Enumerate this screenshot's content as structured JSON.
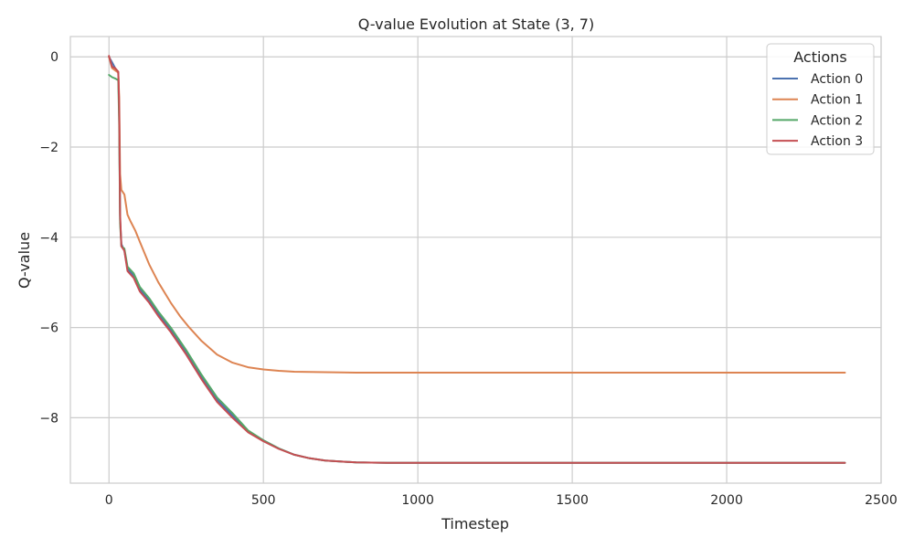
{
  "chart_data": {
    "type": "line",
    "title": "Q-value Evolution at State (3, 7)",
    "xlabel": "Timestep",
    "ylabel": "Q-value",
    "xlim": [
      -125,
      2500
    ],
    "ylim": [
      -9.45,
      0.45
    ],
    "xticks": [
      0,
      500,
      1000,
      1500,
      2000,
      2500
    ],
    "yticks": [
      0,
      -2,
      -4,
      -6,
      -8
    ],
    "grid": true,
    "legend": {
      "title": "Actions",
      "placement": "top-right"
    },
    "series": [
      {
        "name": "Action 0",
        "color": "#4c72b0",
        "x": [
          0,
          10,
          20,
          30,
          33,
          36,
          40,
          50,
          60,
          80,
          100,
          130,
          160,
          200,
          250,
          300,
          350,
          400,
          450,
          500,
          550,
          600,
          650,
          700,
          800,
          900,
          1000,
          1500,
          2000,
          2383
        ],
        "y": [
          0,
          -0.12,
          -0.25,
          -0.35,
          -1.2,
          -3.6,
          -4.15,
          -4.3,
          -4.7,
          -4.85,
          -5.15,
          -5.4,
          -5.7,
          -6.05,
          -6.55,
          -7.1,
          -7.6,
          -7.95,
          -8.3,
          -8.5,
          -8.68,
          -8.82,
          -8.9,
          -8.95,
          -8.99,
          -9.0,
          -9.0,
          -9.0,
          -9.0,
          -9.0
        ]
      },
      {
        "name": "Action 1",
        "color": "#dd8452",
        "x": [
          0,
          10,
          20,
          30,
          33,
          36,
          40,
          50,
          60,
          70,
          85,
          100,
          130,
          160,
          200,
          230,
          260,
          300,
          350,
          400,
          450,
          500,
          550,
          600,
          700,
          800,
          1000,
          1500,
          2000,
          2383
        ],
        "y": [
          0,
          -0.25,
          -0.3,
          -0.35,
          -0.9,
          -2.6,
          -2.95,
          -3.05,
          -3.5,
          -3.65,
          -3.85,
          -4.1,
          -4.6,
          -5.0,
          -5.45,
          -5.75,
          -6.0,
          -6.3,
          -6.6,
          -6.78,
          -6.88,
          -6.93,
          -6.96,
          -6.98,
          -6.99,
          -7.0,
          -7.0,
          -7.0,
          -7.0,
          -7.0
        ]
      },
      {
        "name": "Action 2",
        "color": "#55a868",
        "x": [
          0,
          10,
          20,
          30,
          33,
          36,
          40,
          50,
          60,
          80,
          100,
          130,
          160,
          200,
          250,
          300,
          350,
          400,
          450,
          500,
          550,
          600,
          650,
          700,
          800,
          900,
          1000,
          1500,
          2000,
          2383
        ],
        "y": [
          -0.4,
          -0.45,
          -0.48,
          -0.52,
          -1.5,
          -3.7,
          -4.2,
          -4.25,
          -4.65,
          -4.8,
          -5.1,
          -5.35,
          -5.65,
          -6.0,
          -6.5,
          -7.05,
          -7.55,
          -7.9,
          -8.28,
          -8.5,
          -8.68,
          -8.82,
          -8.9,
          -8.95,
          -8.99,
          -9.0,
          -9.0,
          -9.0,
          -9.0,
          -9.0
        ]
      },
      {
        "name": "Action 3",
        "color": "#c44e52",
        "x": [
          0,
          10,
          20,
          30,
          33,
          36,
          40,
          50,
          60,
          80,
          100,
          130,
          160,
          200,
          250,
          300,
          350,
          400,
          450,
          500,
          550,
          600,
          650,
          700,
          800,
          900,
          1000,
          1500,
          2000,
          2383
        ],
        "y": [
          0.02,
          -0.22,
          -0.25,
          -0.33,
          -1.1,
          -3.5,
          -4.2,
          -4.3,
          -4.75,
          -4.9,
          -5.2,
          -5.45,
          -5.75,
          -6.1,
          -6.6,
          -7.15,
          -7.65,
          -8.0,
          -8.32,
          -8.52,
          -8.69,
          -8.82,
          -8.9,
          -8.95,
          -8.99,
          -9.0,
          -9.0,
          -9.0,
          -9.0,
          -9.0
        ]
      }
    ]
  }
}
